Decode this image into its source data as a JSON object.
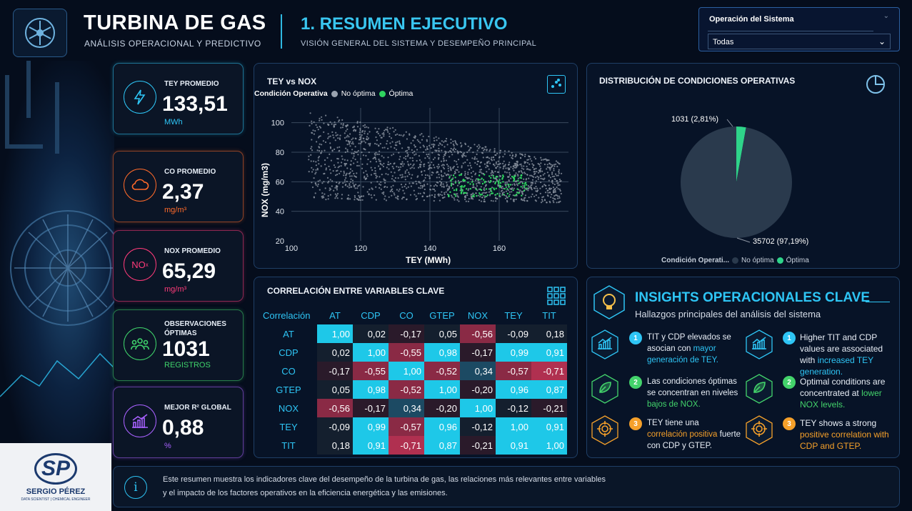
{
  "header": {
    "title": "TURBINA DE GAS",
    "subtitle": "ANÁLISIS OPERACIONAL Y PREDICTIVO",
    "section_title": "1. RESUMEN EJECUTIVO",
    "section_subtitle": "VISIÓN GENERAL DEL SISTEMA Y DESEMPEÑO PRINCIPAL"
  },
  "filter": {
    "label": "Operación del Sistema",
    "selected": "Todas"
  },
  "kpis": [
    {
      "label": "TEY PROMEDIO",
      "value": "133,51",
      "unit": "MWh",
      "color": "#2ec5f5",
      "icon": "lightning-icon"
    },
    {
      "label": "CO PROMEDIO",
      "value": "2,37",
      "unit": "mg/m³",
      "color": "#ff6a2a",
      "icon": "cloud-icon"
    },
    {
      "label": "NOX PROMEDIO",
      "value": "65,29",
      "unit": "mg/m³",
      "color": "#ff3b7a",
      "icon": "nox-icon",
      "icon_text": "NO",
      "icon_sub": "x"
    },
    {
      "label1": "OBSERVACIONES",
      "label2": "ÓPTIMAS",
      "value": "1031",
      "unit": "REGISTROS",
      "color": "#3fd36b",
      "icon": "people-icon"
    },
    {
      "label": "MEJOR R² GLOBAL",
      "value": "0,88",
      "unit": "%",
      "color": "#a861ff",
      "icon": "growth-chart-icon"
    }
  ],
  "scatter": {
    "title": "TEY vs NOX",
    "legend_title": "Condición Operativa",
    "legend": [
      {
        "name": "No óptima",
        "color": "#9aa3b0"
      },
      {
        "name": "Óptima",
        "color": "#2fd45f"
      }
    ],
    "xlabel": "TEY (MWh)",
    "ylabel": "NOX (mg/m3)",
    "xticks": [
      "100",
      "120",
      "140",
      "160"
    ],
    "yticks": [
      "20",
      "40",
      "60",
      "80",
      "100"
    ]
  },
  "pie": {
    "title": "DISTRIBUCIÓN DE CONDICIONES OPERATIVAS",
    "label_small": "1031 (2,81%)",
    "label_large": "35702 (97,19%)",
    "legend_title": "Condición Operati...",
    "legend": [
      {
        "name": "No óptima",
        "color": "#2a3a4d"
      },
      {
        "name": "Óptima",
        "color": "#2fd48a"
      }
    ]
  },
  "correlation": {
    "title": "CORRELACIÓN ENTRE VARIABLES CLAVE",
    "corner": "Correlación",
    "columns": [
      "AT",
      "CDP",
      "CO",
      "GTEP",
      "NOX",
      "TEY",
      "TIT"
    ],
    "rows": [
      {
        "label": "AT",
        "cells": [
          "1,00",
          "0,02",
          "-0,17",
          "0,05",
          "-0,56",
          "-0,09",
          "0,18"
        ]
      },
      {
        "label": "CDP",
        "cells": [
          "0,02",
          "1,00",
          "-0,55",
          "0,98",
          "-0,17",
          "0,99",
          "0,91"
        ]
      },
      {
        "label": "CO",
        "cells": [
          "-0,17",
          "-0,55",
          "1,00",
          "-0,52",
          "0,34",
          "-0,57",
          "-0,71"
        ]
      },
      {
        "label": "GTEP",
        "cells": [
          "0,05",
          "0,98",
          "-0,52",
          "1,00",
          "-0,20",
          "0,96",
          "0,87"
        ]
      },
      {
        "label": "NOX",
        "cells": [
          "-0,56",
          "-0,17",
          "0,34",
          "-0,20",
          "1,00",
          "-0,12",
          "-0,21"
        ]
      },
      {
        "label": "TEY",
        "cells": [
          "-0,09",
          "0,99",
          "-0,57",
          "0,96",
          "-0,12",
          "1,00",
          "0,91"
        ]
      },
      {
        "label": "TIT",
        "cells": [
          "0,18",
          "0,91",
          "-0,71",
          "0,87",
          "-0,21",
          "0,91",
          "1,00"
        ]
      }
    ]
  },
  "insights": {
    "title": "INSIGHTS OPERACIONALES CLAVE",
    "subtitle": "Hallazgos principales del análisis del sistema",
    "es": [
      {
        "n": "1",
        "a": "TIT y CDP elevados se asocian con ",
        "hl": "mayor generación de TEY.",
        "b": ""
      },
      {
        "n": "2",
        "a": "Las condiciones óptimas se concentran en niveles ",
        "hl": "bajos de NOX.",
        "b": ""
      },
      {
        "n": "3",
        "a": "TEY tiene una ",
        "hl": "correlación positiva",
        "b": " fuerte con CDP y GTEP."
      }
    ],
    "en": [
      {
        "n": "1",
        "a": "Higher TIT and CDP values are associated with ",
        "hl": "increased TEY generation.",
        "b": ""
      },
      {
        "n": "2",
        "a": "Optimal conditions are concentrated at ",
        "hl": "lower NOX levels.",
        "b": ""
      },
      {
        "n": "3",
        "a": "TEY shows a strong ",
        "hl": "positive correlation with CDP and GTEP.",
        "b": ""
      }
    ]
  },
  "footer": {
    "line1": "Este resumen muestra los indicadores clave del desempeño de la turbina de gas, las relaciones más relevantes entre variables",
    "line2": "y el impacto de los factores operativos en la eficiencia energética y las emisiones."
  },
  "brand": {
    "initials": "SP",
    "name": "SERGIO PÉREZ",
    "tagline": "DATA SCIENTIST | CHEMICAL ENGINEER"
  },
  "chart_data": [
    {
      "type": "scatter",
      "title": "TEY vs NOX",
      "xlabel": "TEY (MWh)",
      "ylabel": "NOX (mg/m3)",
      "xlim": [
        100,
        180
      ],
      "ylim": [
        20,
        110
      ],
      "series": [
        {
          "name": "No óptima",
          "x_range": [
            105,
            178
          ],
          "y_range": [
            40,
            110
          ],
          "approx_points": 35702
        },
        {
          "name": "Óptima",
          "x_range": [
            145,
            168
          ],
          "y_range": [
            50,
            65
          ],
          "approx_points": 1031
        }
      ],
      "grid": true,
      "legend": "top-left"
    },
    {
      "type": "pie",
      "title": "DISTRIBUCIÓN DE CONDICIONES OPERATIVAS",
      "categories": [
        "No óptima",
        "Óptima"
      ],
      "values": [
        35702,
        1031
      ],
      "percent": [
        97.19,
        2.81
      ],
      "legend": "bottom"
    },
    {
      "type": "heatmap",
      "title": "CORRELACIÓN ENTRE VARIABLES CLAVE",
      "categories": [
        "AT",
        "CDP",
        "CO",
        "GTEP",
        "NOX",
        "TEY",
        "TIT"
      ]
    }
  ]
}
